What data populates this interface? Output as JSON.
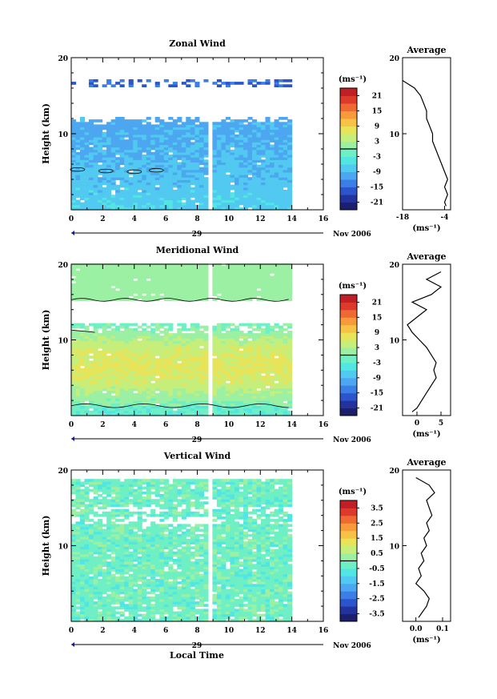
{
  "figure": {
    "xlabel": "Local Time",
    "date_label": "29",
    "month_label": "Nov 2006",
    "average_title": "Average",
    "ylabel": "Height (km)",
    "cbar_unit": "(ms⁻¹)",
    "avg_unit": "(ms⁻¹)"
  },
  "chart_data": [
    {
      "type": "heatmap",
      "title": "Zonal Wind",
      "ylabel": "Height (km)",
      "xlabel": "",
      "xlim": [
        0,
        16
      ],
      "ylim": [
        0,
        20
      ],
      "xticks": [
        "0",
        "2",
        "4",
        "6",
        "8",
        "10",
        "12",
        "14",
        "16"
      ],
      "yticks": [
        "10",
        "20"
      ],
      "colorbar": {
        "unit": "(ms⁻¹)",
        "ticks": [
          "21",
          "15",
          "9",
          "3",
          "-3",
          "-9",
          "-15",
          "-21"
        ],
        "range": [
          -24,
          24
        ],
        "zero_contour": 0
      },
      "data_gap": [
        8.7,
        8.95
      ],
      "data_end": 14.1,
      "profile": {
        "title": "Average",
        "unit": "(ms⁻¹)",
        "xticks": [
          "-18",
          "-4"
        ],
        "xlim": [
          -18,
          -2
        ],
        "points": [
          [
            -3.5,
            0.5
          ],
          [
            -4,
            1
          ],
          [
            -3,
            2
          ],
          [
            -4,
            3
          ],
          [
            -3,
            4
          ],
          [
            -4,
            5
          ],
          [
            -5,
            6
          ],
          [
            -6,
            7
          ],
          [
            -7,
            8
          ],
          [
            -8,
            9
          ],
          [
            -8,
            10
          ],
          [
            -9,
            11
          ],
          [
            -10,
            12
          ],
          [
            -10,
            13
          ],
          [
            -11,
            14
          ],
          [
            -12,
            15
          ],
          [
            -14,
            16
          ],
          [
            -16,
            16.5
          ],
          [
            -18,
            17
          ]
        ]
      }
    },
    {
      "type": "heatmap",
      "title": "Meridional Wind",
      "ylabel": "Height (km)",
      "xlabel": "",
      "xlim": [
        0,
        16
      ],
      "ylim": [
        0,
        20
      ],
      "xticks": [
        "0",
        "2",
        "4",
        "6",
        "8",
        "10",
        "12",
        "14",
        "16"
      ],
      "yticks": [
        "10",
        "20"
      ],
      "colorbar": {
        "unit": "(ms⁻¹)",
        "ticks": [
          "21",
          "15",
          "9",
          "3",
          "-3",
          "-9",
          "-15",
          "-21"
        ],
        "range": [
          -24,
          24
        ],
        "zero_contour": 0
      },
      "data_gap": [
        8.7,
        8.95
      ],
      "data_end": 14.1,
      "profile": {
        "title": "Average",
        "unit": "(ms⁻¹)",
        "xticks": [
          "0",
          "5"
        ],
        "xlim": [
          -3,
          7
        ],
        "points": [
          [
            -1,
            0.5
          ],
          [
            0,
            1
          ],
          [
            1,
            2
          ],
          [
            2,
            3
          ],
          [
            3,
            4
          ],
          [
            4,
            5
          ],
          [
            3.5,
            6
          ],
          [
            4,
            7
          ],
          [
            3,
            8
          ],
          [
            2,
            9
          ],
          [
            0.5,
            10
          ],
          [
            -1,
            11
          ],
          [
            -2,
            12
          ],
          [
            0,
            13
          ],
          [
            2,
            14
          ],
          [
            -1,
            15
          ],
          [
            3,
            16
          ],
          [
            5,
            17
          ],
          [
            2,
            18
          ],
          [
            5,
            19
          ]
        ]
      }
    },
    {
      "type": "heatmap",
      "title": "Vertical Wind",
      "ylabel": "Height (km)",
      "xlabel": "Local Time",
      "xlim": [
        0,
        16
      ],
      "ylim": [
        0,
        20
      ],
      "xticks": [
        "0",
        "2",
        "4",
        "6",
        "8",
        "10",
        "12",
        "14",
        "16"
      ],
      "yticks": [
        "10",
        "20"
      ],
      "colorbar": {
        "unit": "(ms⁻¹)",
        "ticks": [
          "3.5",
          "2.5",
          "1.5",
          "0.5",
          "-0.5",
          "-1.5",
          "-2.5",
          "-3.5"
        ],
        "range": [
          -4,
          4
        ],
        "zero_contour": 0
      },
      "data_gap": [
        8.7,
        8.95
      ],
      "data_end": 14.1,
      "profile": {
        "title": "Average",
        "unit": "(ms⁻¹)",
        "xticks": [
          "0.0",
          "0.1"
        ],
        "xlim": [
          -0.05,
          0.13
        ],
        "points": [
          [
            0.01,
            0.5
          ],
          [
            0.02,
            1
          ],
          [
            0.04,
            2
          ],
          [
            0.05,
            3
          ],
          [
            0.03,
            4
          ],
          [
            0.0,
            5
          ],
          [
            0.02,
            6
          ],
          [
            0.01,
            7
          ],
          [
            0.03,
            8
          ],
          [
            0.02,
            9
          ],
          [
            0.04,
            10
          ],
          [
            0.03,
            11
          ],
          [
            0.05,
            12
          ],
          [
            0.04,
            13
          ],
          [
            0.06,
            14
          ],
          [
            0.05,
            15
          ],
          [
            0.04,
            16
          ],
          [
            0.07,
            17
          ],
          [
            0.05,
            18
          ],
          [
            0.0,
            19
          ]
        ]
      }
    }
  ]
}
